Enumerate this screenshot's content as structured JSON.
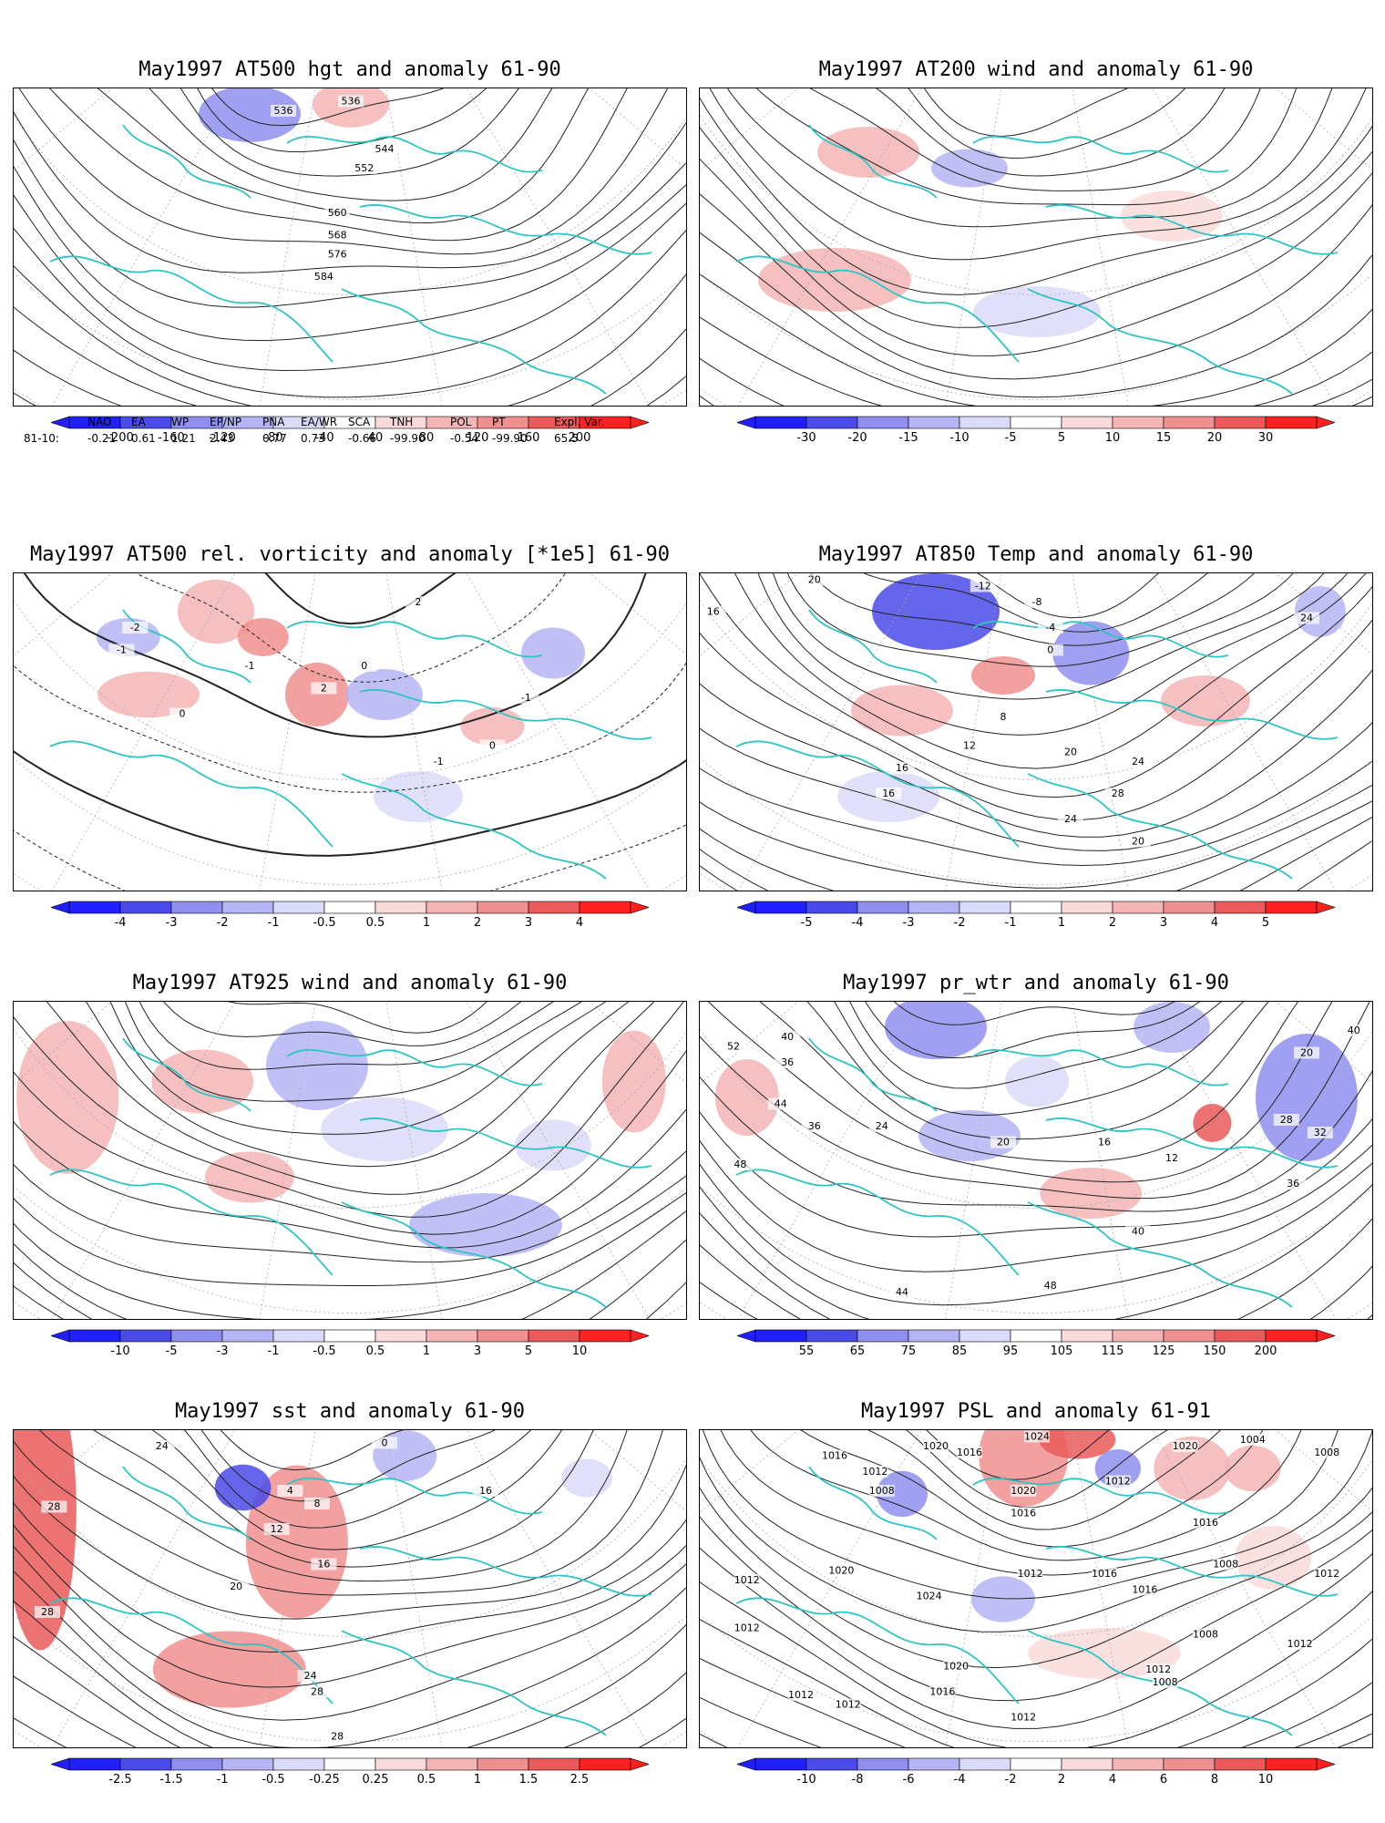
{
  "colors": {
    "coast": "#2ec4c4",
    "contour": "#222222",
    "neg": [
      "#1f1fff",
      "#4a4ae8",
      "#8f8ff0",
      "#b5b5f5",
      "#dadafa"
    ],
    "pos": [
      "#fadada",
      "#f5b5b5",
      "#f08f8f",
      "#ea5a5a",
      "#ff2020"
    ]
  },
  "panels": [
    {
      "id": "hgt500",
      "title": "May1997 AT500 hgt and anomaly 61-90",
      "kind": "contour",
      "ticks": [
        "-200",
        "-160",
        "-120",
        "-80",
        "-40",
        "40",
        "80",
        "120",
        "160",
        "200"
      ],
      "labels": [
        [
          "536",
          0.4,
          0.08
        ],
        [
          "536",
          0.5,
          0.05
        ],
        [
          "544",
          0.55,
          0.2
        ],
        [
          "552",
          0.52,
          0.26
        ],
        [
          "560",
          0.48,
          0.4
        ],
        [
          "568",
          0.48,
          0.47
        ],
        [
          "576",
          0.48,
          0.53
        ],
        [
          "584",
          0.46,
          0.6
        ]
      ],
      "blobs": [
        [
          0.35,
          0.08,
          40,
          22,
          -3
        ],
        [
          0.5,
          0.05,
          30,
          18,
          2
        ]
      ]
    },
    {
      "id": "wind200",
      "title": "May1997 AT200 wind and anomaly 61-90",
      "kind": "wind",
      "ticks": [
        "-30",
        "-20",
        "-15",
        "-10",
        "-5",
        "5",
        "10",
        "15",
        "20",
        "30"
      ],
      "labels": [],
      "blobs": [
        [
          0.25,
          0.2,
          40,
          20,
          2
        ],
        [
          0.4,
          0.25,
          30,
          15,
          -2
        ],
        [
          0.2,
          0.6,
          60,
          25,
          2
        ],
        [
          0.5,
          0.7,
          50,
          20,
          -1
        ],
        [
          0.7,
          0.4,
          40,
          20,
          1
        ]
      ]
    },
    {
      "id": "vort500",
      "title": "May1997 AT500 rel. vorticity and anomaly [*1e5] 61-90",
      "kind": "vort",
      "ticks": [
        "-4",
        "-3",
        "-2",
        "-1",
        "-0.5",
        "0.5",
        "1",
        "2",
        "3",
        "4"
      ],
      "labels": [
        [
          "-2",
          0.18,
          0.18
        ],
        [
          "-1",
          0.16,
          0.25
        ],
        [
          "2",
          0.46,
          0.37
        ],
        [
          "-1",
          0.35,
          0.3
        ],
        [
          "0",
          0.25,
          0.45
        ],
        [
          "0",
          0.52,
          0.3
        ],
        [
          "-1",
          0.76,
          0.4
        ],
        [
          "2",
          0.6,
          0.1
        ],
        [
          "-1",
          0.63,
          0.6
        ],
        [
          "0",
          0.71,
          0.55
        ]
      ],
      "blobs": [
        [
          0.3,
          0.12,
          30,
          25,
          2
        ],
        [
          0.37,
          0.2,
          20,
          15,
          3
        ],
        [
          0.45,
          0.38,
          25,
          25,
          3
        ],
        [
          0.17,
          0.2,
          25,
          15,
          -2
        ],
        [
          0.55,
          0.38,
          30,
          20,
          -2
        ],
        [
          0.8,
          0.25,
          25,
          20,
          -2
        ],
        [
          0.2,
          0.38,
          40,
          18,
          2
        ],
        [
          0.6,
          0.7,
          35,
          20,
          -1
        ],
        [
          0.71,
          0.48,
          25,
          15,
          2
        ]
      ]
    },
    {
      "id": "temp850",
      "title": "May1997 AT850 Temp and anomaly 61-90",
      "kind": "contour",
      "ticks": [
        "-5",
        "-4",
        "-3",
        "-2",
        "-1",
        "1",
        "2",
        "3",
        "4",
        "5"
      ],
      "labels": [
        [
          "20",
          0.17,
          0.03
        ],
        [
          "16",
          0.02,
          0.13
        ],
        [
          "-12",
          0.42,
          0.05
        ],
        [
          "-8",
          0.5,
          0.1
        ],
        [
          "-4",
          0.52,
          0.18
        ],
        [
          "0",
          0.52,
          0.25
        ],
        [
          "8",
          0.45,
          0.46
        ],
        [
          "12",
          0.4,
          0.55
        ],
        [
          "20",
          0.55,
          0.57
        ],
        [
          "24",
          0.65,
          0.6
        ],
        [
          "16",
          0.3,
          0.62
        ],
        [
          "16",
          0.28,
          0.7
        ],
        [
          "28",
          0.62,
          0.7
        ],
        [
          "24",
          0.55,
          0.78
        ],
        [
          "20",
          0.65,
          0.85
        ],
        [
          "24",
          0.9,
          0.15
        ]
      ],
      "blobs": [
        [
          0.35,
          0.12,
          50,
          30,
          -4
        ],
        [
          0.58,
          0.25,
          30,
          25,
          -3
        ],
        [
          0.92,
          0.12,
          20,
          20,
          -2
        ],
        [
          0.3,
          0.43,
          40,
          20,
          2
        ],
        [
          0.75,
          0.4,
          35,
          20,
          2
        ],
        [
          0.45,
          0.32,
          25,
          15,
          3
        ],
        [
          0.28,
          0.7,
          40,
          20,
          -1
        ]
      ]
    },
    {
      "id": "wind925",
      "title": "May1997 AT925 wind and anomaly 61-90",
      "kind": "wind",
      "ticks": [
        "-10",
        "-5",
        "-3",
        "-1",
        "-0.5",
        "0.5",
        "1",
        "3",
        "5",
        "10"
      ],
      "labels": [],
      "blobs": [
        [
          0.08,
          0.3,
          40,
          60,
          2
        ],
        [
          0.28,
          0.25,
          40,
          25,
          2
        ],
        [
          0.45,
          0.2,
          40,
          35,
          -2
        ],
        [
          0.55,
          0.4,
          50,
          25,
          -1
        ],
        [
          0.7,
          0.7,
          60,
          25,
          -2
        ],
        [
          0.92,
          0.25,
          25,
          40,
          2
        ],
        [
          0.35,
          0.55,
          35,
          20,
          2
        ],
        [
          0.8,
          0.45,
          30,
          20,
          -1
        ]
      ]
    },
    {
      "id": "prwtr",
      "title": "May1997 pr_wtr and anomaly 61-90",
      "kind": "contour",
      "ticks": [
        "55",
        "65",
        "75",
        "85",
        "95",
        "105",
        "115",
        "125",
        "150",
        "200"
      ],
      "labels": [
        [
          "52",
          0.05,
          0.15
        ],
        [
          "40",
          0.13,
          0.12
        ],
        [
          "36",
          0.13,
          0.2
        ],
        [
          "44",
          0.12,
          0.33
        ],
        [
          "48",
          0.06,
          0.52
        ],
        [
          "36",
          0.17,
          0.4
        ],
        [
          "24",
          0.27,
          0.4
        ],
        [
          "20",
          0.45,
          0.45
        ],
        [
          "16",
          0.6,
          0.45
        ],
        [
          "12",
          0.7,
          0.5
        ],
        [
          "28",
          0.87,
          0.38
        ],
        [
          "32",
          0.92,
          0.42
        ],
        [
          "36",
          0.88,
          0.58
        ],
        [
          "40",
          0.65,
          0.73
        ],
        [
          "44",
          0.3,
          0.92
        ],
        [
          "48",
          0.52,
          0.9
        ],
        [
          "20",
          0.9,
          0.17
        ],
        [
          "40",
          0.97,
          0.1
        ]
      ],
      "blobs": [
        [
          0.35,
          0.08,
          40,
          25,
          -3
        ],
        [
          0.7,
          0.08,
          30,
          20,
          -2
        ],
        [
          0.9,
          0.3,
          40,
          50,
          -3
        ],
        [
          0.4,
          0.42,
          40,
          20,
          -2
        ],
        [
          0.58,
          0.6,
          40,
          20,
          2
        ],
        [
          0.07,
          0.3,
          25,
          30,
          2
        ],
        [
          0.76,
          0.38,
          15,
          15,
          4
        ],
        [
          0.5,
          0.25,
          25,
          20,
          -1
        ]
      ]
    },
    {
      "id": "sst",
      "title": "May1997 sst and anomaly 61-90",
      "kind": "contour",
      "ticks": [
        "-2.5",
        "-1.5",
        "-1",
        "-0.5",
        "-0.25",
        "0.25",
        "0.5",
        "1",
        "1.5",
        "2.5"
      ],
      "labels": [
        [
          "28",
          0.06,
          0.25
        ],
        [
          "28",
          0.05,
          0.58
        ],
        [
          "24",
          0.22,
          0.06
        ],
        [
          "4",
          0.41,
          0.2
        ],
        [
          "8",
          0.45,
          0.24
        ],
        [
          "12",
          0.39,
          0.32
        ],
        [
          "16",
          0.46,
          0.43
        ],
        [
          "20",
          0.33,
          0.5
        ],
        [
          "24",
          0.44,
          0.78
        ],
        [
          "28",
          0.45,
          0.83
        ],
        [
          "28",
          0.48,
          0.97
        ],
        [
          "0",
          0.55,
          0.05
        ],
        [
          "16",
          0.7,
          0.2
        ]
      ],
      "blobs": [
        [
          0.04,
          0.25,
          28,
          110,
          4
        ],
        [
          0.42,
          0.35,
          40,
          60,
          3
        ],
        [
          0.32,
          0.75,
          60,
          30,
          3
        ],
        [
          0.34,
          0.18,
          22,
          18,
          -4
        ],
        [
          0.58,
          0.08,
          25,
          20,
          -2
        ],
        [
          0.85,
          0.15,
          20,
          15,
          -1
        ]
      ]
    },
    {
      "id": "psl",
      "title": "May1997 PSL and anomaly 61-91",
      "kind": "contour",
      "ticks": [
        "-10",
        "-8",
        "-6",
        "-4",
        "-2",
        "2",
        "4",
        "6",
        "8",
        "10"
      ],
      "labels": [
        [
          "1016",
          0.2,
          0.09
        ],
        [
          "1020",
          0.35,
          0.06
        ],
        [
          "1016",
          0.4,
          0.08
        ],
        [
          "1024",
          0.5,
          0.03
        ],
        [
          "1008",
          0.27,
          0.2
        ],
        [
          "1012",
          0.26,
          0.14
        ],
        [
          "1020",
          0.48,
          0.2
        ],
        [
          "1016",
          0.48,
          0.27
        ],
        [
          "1012",
          0.62,
          0.17
        ],
        [
          "1020",
          0.21,
          0.45
        ],
        [
          "1024",
          0.34,
          0.53
        ],
        [
          "1012",
          0.49,
          0.46
        ],
        [
          "1020",
          0.38,
          0.75
        ],
        [
          "1016",
          0.36,
          0.83
        ],
        [
          "1012",
          0.07,
          0.48
        ],
        [
          "1012",
          0.07,
          0.63
        ],
        [
          "1012",
          0.15,
          0.84
        ],
        [
          "1012",
          0.22,
          0.87
        ],
        [
          "1016",
          0.6,
          0.46
        ],
        [
          "1016",
          0.66,
          0.51
        ],
        [
          "1008",
          0.75,
          0.65
        ],
        [
          "1012",
          0.68,
          0.76
        ],
        [
          "1008",
          0.69,
          0.8
        ],
        [
          "1012",
          0.48,
          0.91
        ],
        [
          "1012",
          0.89,
          0.68
        ],
        [
          "1012",
          0.93,
          0.46
        ],
        [
          "1008",
          0.93,
          0.08
        ],
        [
          "1016",
          0.75,
          0.3
        ],
        [
          "1008",
          0.78,
          0.43
        ],
        [
          "1004",
          0.82,
          0.04
        ],
        [
          "1020",
          0.72,
          0.06
        ]
      ],
      "blobs": [
        [
          0.48,
          0.08,
          35,
          40,
          3
        ],
        [
          0.56,
          0.03,
          30,
          15,
          4
        ],
        [
          0.3,
          0.2,
          20,
          18,
          -3
        ],
        [
          0.62,
          0.12,
          18,
          15,
          -3
        ],
        [
          0.45,
          0.53,
          25,
          18,
          -2
        ],
        [
          0.73,
          0.12,
          30,
          25,
          2
        ],
        [
          0.82,
          0.12,
          22,
          18,
          2
        ],
        [
          0.6,
          0.7,
          60,
          20,
          1
        ],
        [
          0.85,
          0.4,
          30,
          25,
          1
        ]
      ]
    }
  ],
  "teleconnection": {
    "headers": [
      "NAO",
      "EA",
      "WP",
      "EP/NP",
      "PNA",
      "EA/WR",
      "SCA",
      "TNH",
      "POL",
      "PT",
      "Expl. Var."
    ],
    "row_label": "81-10:",
    "values": [
      "-0.21",
      "0.61",
      "1.21",
      "2.43",
      "0.77",
      "0.73",
      "-0.66",
      "-99.90",
      "-0.54",
      "-99.90",
      "65.5"
    ]
  }
}
